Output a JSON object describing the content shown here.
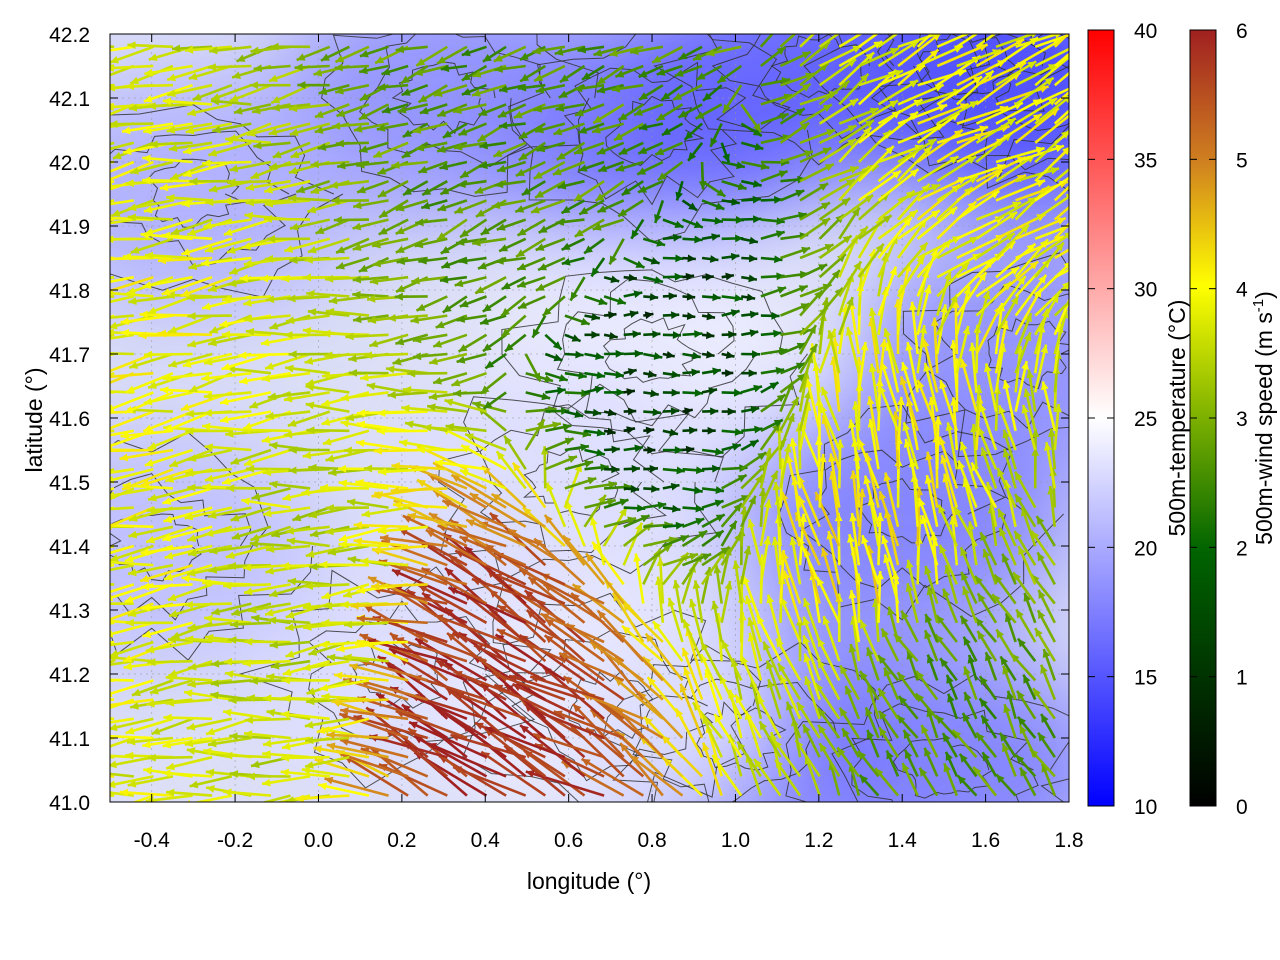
{
  "chart_data": {
    "type": "heatmap",
    "xlabel": "longitude (°)",
    "ylabel": "latitude (°)",
    "xlim": [
      -0.5,
      1.8
    ],
    "ylim": [
      41.0,
      42.2
    ],
    "x_ticks": [
      "-0.4",
      "-0.2",
      "0.0",
      "0.2",
      "0.4",
      "0.6",
      "0.8",
      "1.0",
      "1.2",
      "1.4",
      "1.6",
      "1.8"
    ],
    "x_tick_values": [
      -0.4,
      -0.2,
      0.0,
      0.2,
      0.4,
      0.6,
      0.8,
      1.0,
      1.2,
      1.4,
      1.6,
      1.8
    ],
    "y_ticks": [
      "41.0",
      "41.1",
      "41.2",
      "41.3",
      "41.4",
      "41.5",
      "41.6",
      "41.7",
      "41.8",
      "41.9",
      "42.0",
      "42.1",
      "42.2"
    ],
    "y_tick_values": [
      41.0,
      41.1,
      41.2,
      41.3,
      41.4,
      41.5,
      41.6,
      41.7,
      41.8,
      41.9,
      42.0,
      42.1,
      42.2
    ],
    "grid": true,
    "colorbars": [
      {
        "label": "500m-temperature (°C)",
        "range": [
          10,
          40
        ],
        "ticks": [
          "10",
          "15",
          "20",
          "25",
          "30",
          "35",
          "40"
        ],
        "tick_values": [
          10,
          15,
          20,
          25,
          30,
          35,
          40
        ],
        "colors": [
          "#0000ff",
          "#ffffff",
          "#ff0000"
        ]
      },
      {
        "label_main": "500m-wind speed (m s",
        "label_sup": "-1",
        "label_end": ")",
        "range": [
          0,
          6
        ],
        "ticks": [
          "0",
          "1",
          "2",
          "3",
          "4",
          "5",
          "6"
        ],
        "tick_values": [
          0,
          1,
          2,
          3,
          4,
          5,
          6
        ],
        "colors": [
          "#000000",
          "#006400",
          "#7cb000",
          "#ffff00",
          "#d08020",
          "#a02020"
        ]
      }
    ],
    "temperature_regions": [
      {
        "lon": 1.55,
        "lat": 42.15,
        "t": 12
      },
      {
        "lon": 0.8,
        "lat": 42.05,
        "t": 15
      },
      {
        "lon": 1.2,
        "lat": 42.15,
        "t": 16
      },
      {
        "lon": 1.75,
        "lat": 42.1,
        "t": 15
      },
      {
        "lon": 0.3,
        "lat": 42.1,
        "t": 18
      },
      {
        "lon": -0.3,
        "lat": 41.95,
        "t": 20
      },
      {
        "lon": 0.8,
        "lat": 41.7,
        "t": 24
      },
      {
        "lon": 0.6,
        "lat": 41.5,
        "t": 23
      },
      {
        "lon": 1.4,
        "lat": 41.45,
        "t": 17
      },
      {
        "lon": 1.0,
        "lat": 41.1,
        "t": 16
      },
      {
        "lon": 1.5,
        "lat": 41.05,
        "t": 17
      },
      {
        "lon": 0.2,
        "lat": 41.2,
        "t": 23
      },
      {
        "lon": -0.4,
        "lat": 41.4,
        "t": 21
      },
      {
        "lon": 0.7,
        "lat": 41.15,
        "t": 24
      },
      {
        "lon": 1.7,
        "lat": 41.7,
        "t": 18
      }
    ],
    "wind_field_samples": [
      {
        "lon": -0.4,
        "lat": 41.5,
        "speed": 3.5,
        "dir_deg": 190
      },
      {
        "lon": 0.0,
        "lat": 41.3,
        "speed": 3.0,
        "dir_deg": 185
      },
      {
        "lon": 0.45,
        "lat": 41.15,
        "speed": 5.8,
        "dir_deg": 150
      },
      {
        "lon": 0.8,
        "lat": 41.7,
        "speed": 0.8,
        "dir_deg": 0
      },
      {
        "lon": 1.35,
        "lat": 41.4,
        "speed": 3.8,
        "dir_deg": 100
      },
      {
        "lon": 1.5,
        "lat": 41.15,
        "speed": 2.0,
        "dir_deg": 120
      },
      {
        "lon": 0.6,
        "lat": 42.0,
        "speed": 2.0,
        "dir_deg": 200
      },
      {
        "lon": 1.6,
        "lat": 42.1,
        "speed": 3.5,
        "dir_deg": 30
      }
    ]
  }
}
